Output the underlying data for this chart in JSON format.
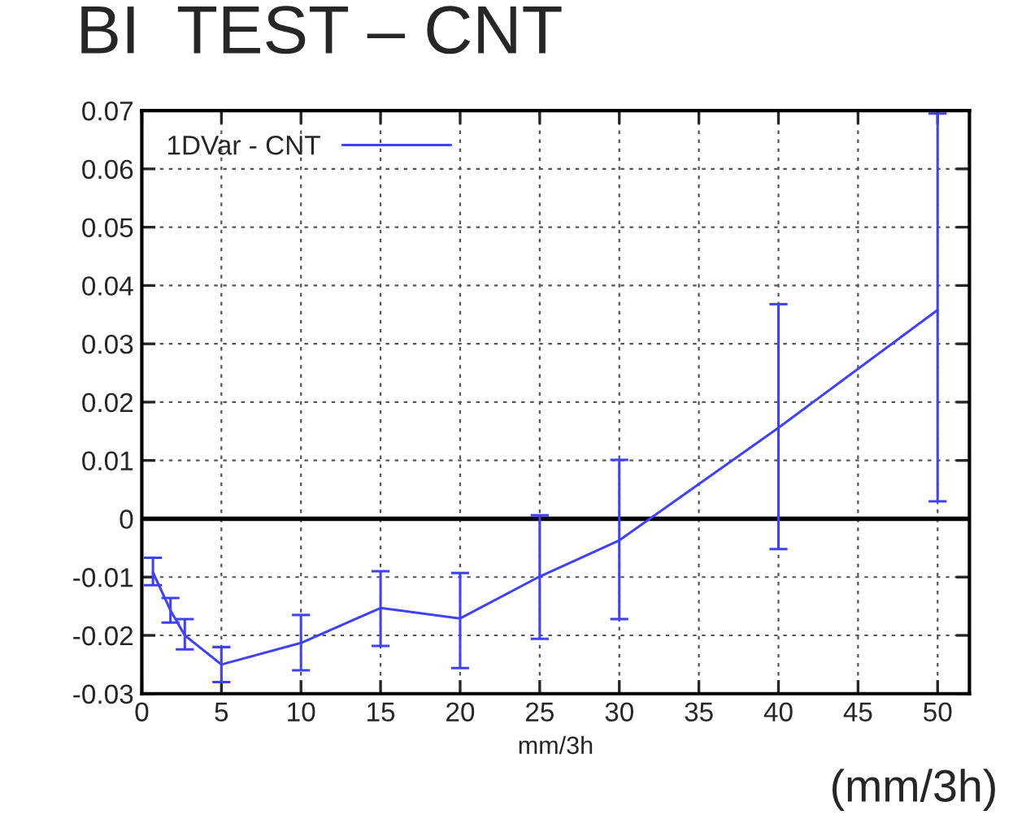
{
  "chart_data": {
    "type": "line",
    "title": "BI  TEST – CNT",
    "xlabel": "mm/3h",
    "x": [
      0.7,
      1.8,
      2.7,
      5,
      10,
      15,
      20,
      25,
      30,
      40,
      50
    ],
    "series": [
      {
        "name": "1DVar - CNT",
        "color": "#4040ff",
        "values": [
          -0.0092,
          -0.0157,
          -0.02,
          -0.025,
          -0.0213,
          -0.0153,
          -0.0171,
          -0.0099,
          -0.0037,
          0.0156,
          0.0358
        ],
        "errors": [
          [
            -0.0114,
            -0.0067
          ],
          [
            -0.0178,
            -0.0136
          ],
          [
            -0.0224,
            -0.0172
          ],
          [
            -0.028,
            -0.022
          ],
          [
            -0.026,
            -0.0165
          ],
          [
            -0.0218,
            -0.009
          ],
          [
            -0.0256,
            -0.0093
          ],
          [
            -0.0206,
            0.0006
          ],
          [
            -0.0172,
            0.0101
          ],
          [
            -0.0052,
            0.0368
          ],
          [
            0.003,
            0.0695
          ]
        ]
      }
    ],
    "xlim": [
      0,
      52
    ],
    "xticks": [
      0,
      5,
      10,
      15,
      20,
      25,
      30,
      35,
      40,
      45,
      50
    ],
    "ylim": [
      -0.03,
      0.07
    ],
    "yticks": [
      {
        "value": -0.03,
        "label": "-0.03"
      },
      {
        "value": -0.02,
        "label": "-0.02"
      },
      {
        "value": -0.01,
        "label": "-0.01"
      },
      {
        "value": 0,
        "label": "0"
      },
      {
        "value": 0.01,
        "label": "0.01"
      },
      {
        "value": 0.02,
        "label": "0.02"
      },
      {
        "value": 0.03,
        "label": "0.03"
      },
      {
        "value": 0.04,
        "label": "0.04"
      },
      {
        "value": 0.05,
        "label": "0.05"
      },
      {
        "value": 0.06,
        "label": "0.06"
      },
      {
        "value": 0.07,
        "label": "0.07"
      }
    ],
    "ref_lines": [
      {
        "axis": "y",
        "value": 0,
        "color": "#000000"
      }
    ],
    "annotations": [
      "(mm/3h)"
    ],
    "grid": true,
    "legend": "top left",
    "marker": "none",
    "line_style": "solid"
  }
}
